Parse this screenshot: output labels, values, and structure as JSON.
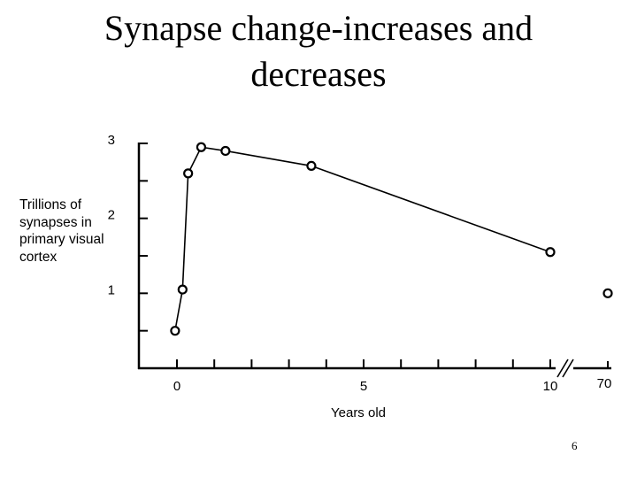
{
  "slide": {
    "title": "Synapse change-increases and decreases",
    "page_number": "6"
  },
  "chart_data": {
    "type": "line",
    "title": "",
    "ylabel": "Trillions of synapses in primary visual cortex",
    "xlabel": "Years old",
    "ylim": [
      0,
      3
    ],
    "y_ticks": [
      0.5,
      1,
      1.5,
      2,
      2.5,
      3
    ],
    "y_tick_labels": [
      {
        "value": 1,
        "label": "1"
      },
      {
        "value": 2,
        "label": "2"
      },
      {
        "value": 3,
        "label": "3"
      }
    ],
    "x_ticks": [
      0,
      1,
      2,
      3,
      4,
      5,
      6,
      7,
      8,
      9,
      10
    ],
    "x_tick_labels": [
      {
        "value": 0,
        "label": "0"
      },
      {
        "value": 5,
        "label": "5"
      },
      {
        "value": 10,
        "label": "10"
      },
      {
        "value": 70,
        "label": "70"
      }
    ],
    "axis_break_after": 10,
    "grid": false,
    "series": [
      {
        "connected": true,
        "points": [
          {
            "x": -0.05,
            "y": 0.5
          },
          {
            "x": 0.15,
            "y": 1.05
          },
          {
            "x": 0.3,
            "y": 2.6
          },
          {
            "x": 0.65,
            "y": 2.95
          },
          {
            "x": 1.3,
            "y": 2.9
          },
          {
            "x": 3.6,
            "y": 2.7
          },
          {
            "x": 10,
            "y": 1.55
          }
        ]
      },
      {
        "connected": false,
        "points": [
          {
            "x": 70,
            "y": 1.0
          }
        ]
      }
    ]
  }
}
